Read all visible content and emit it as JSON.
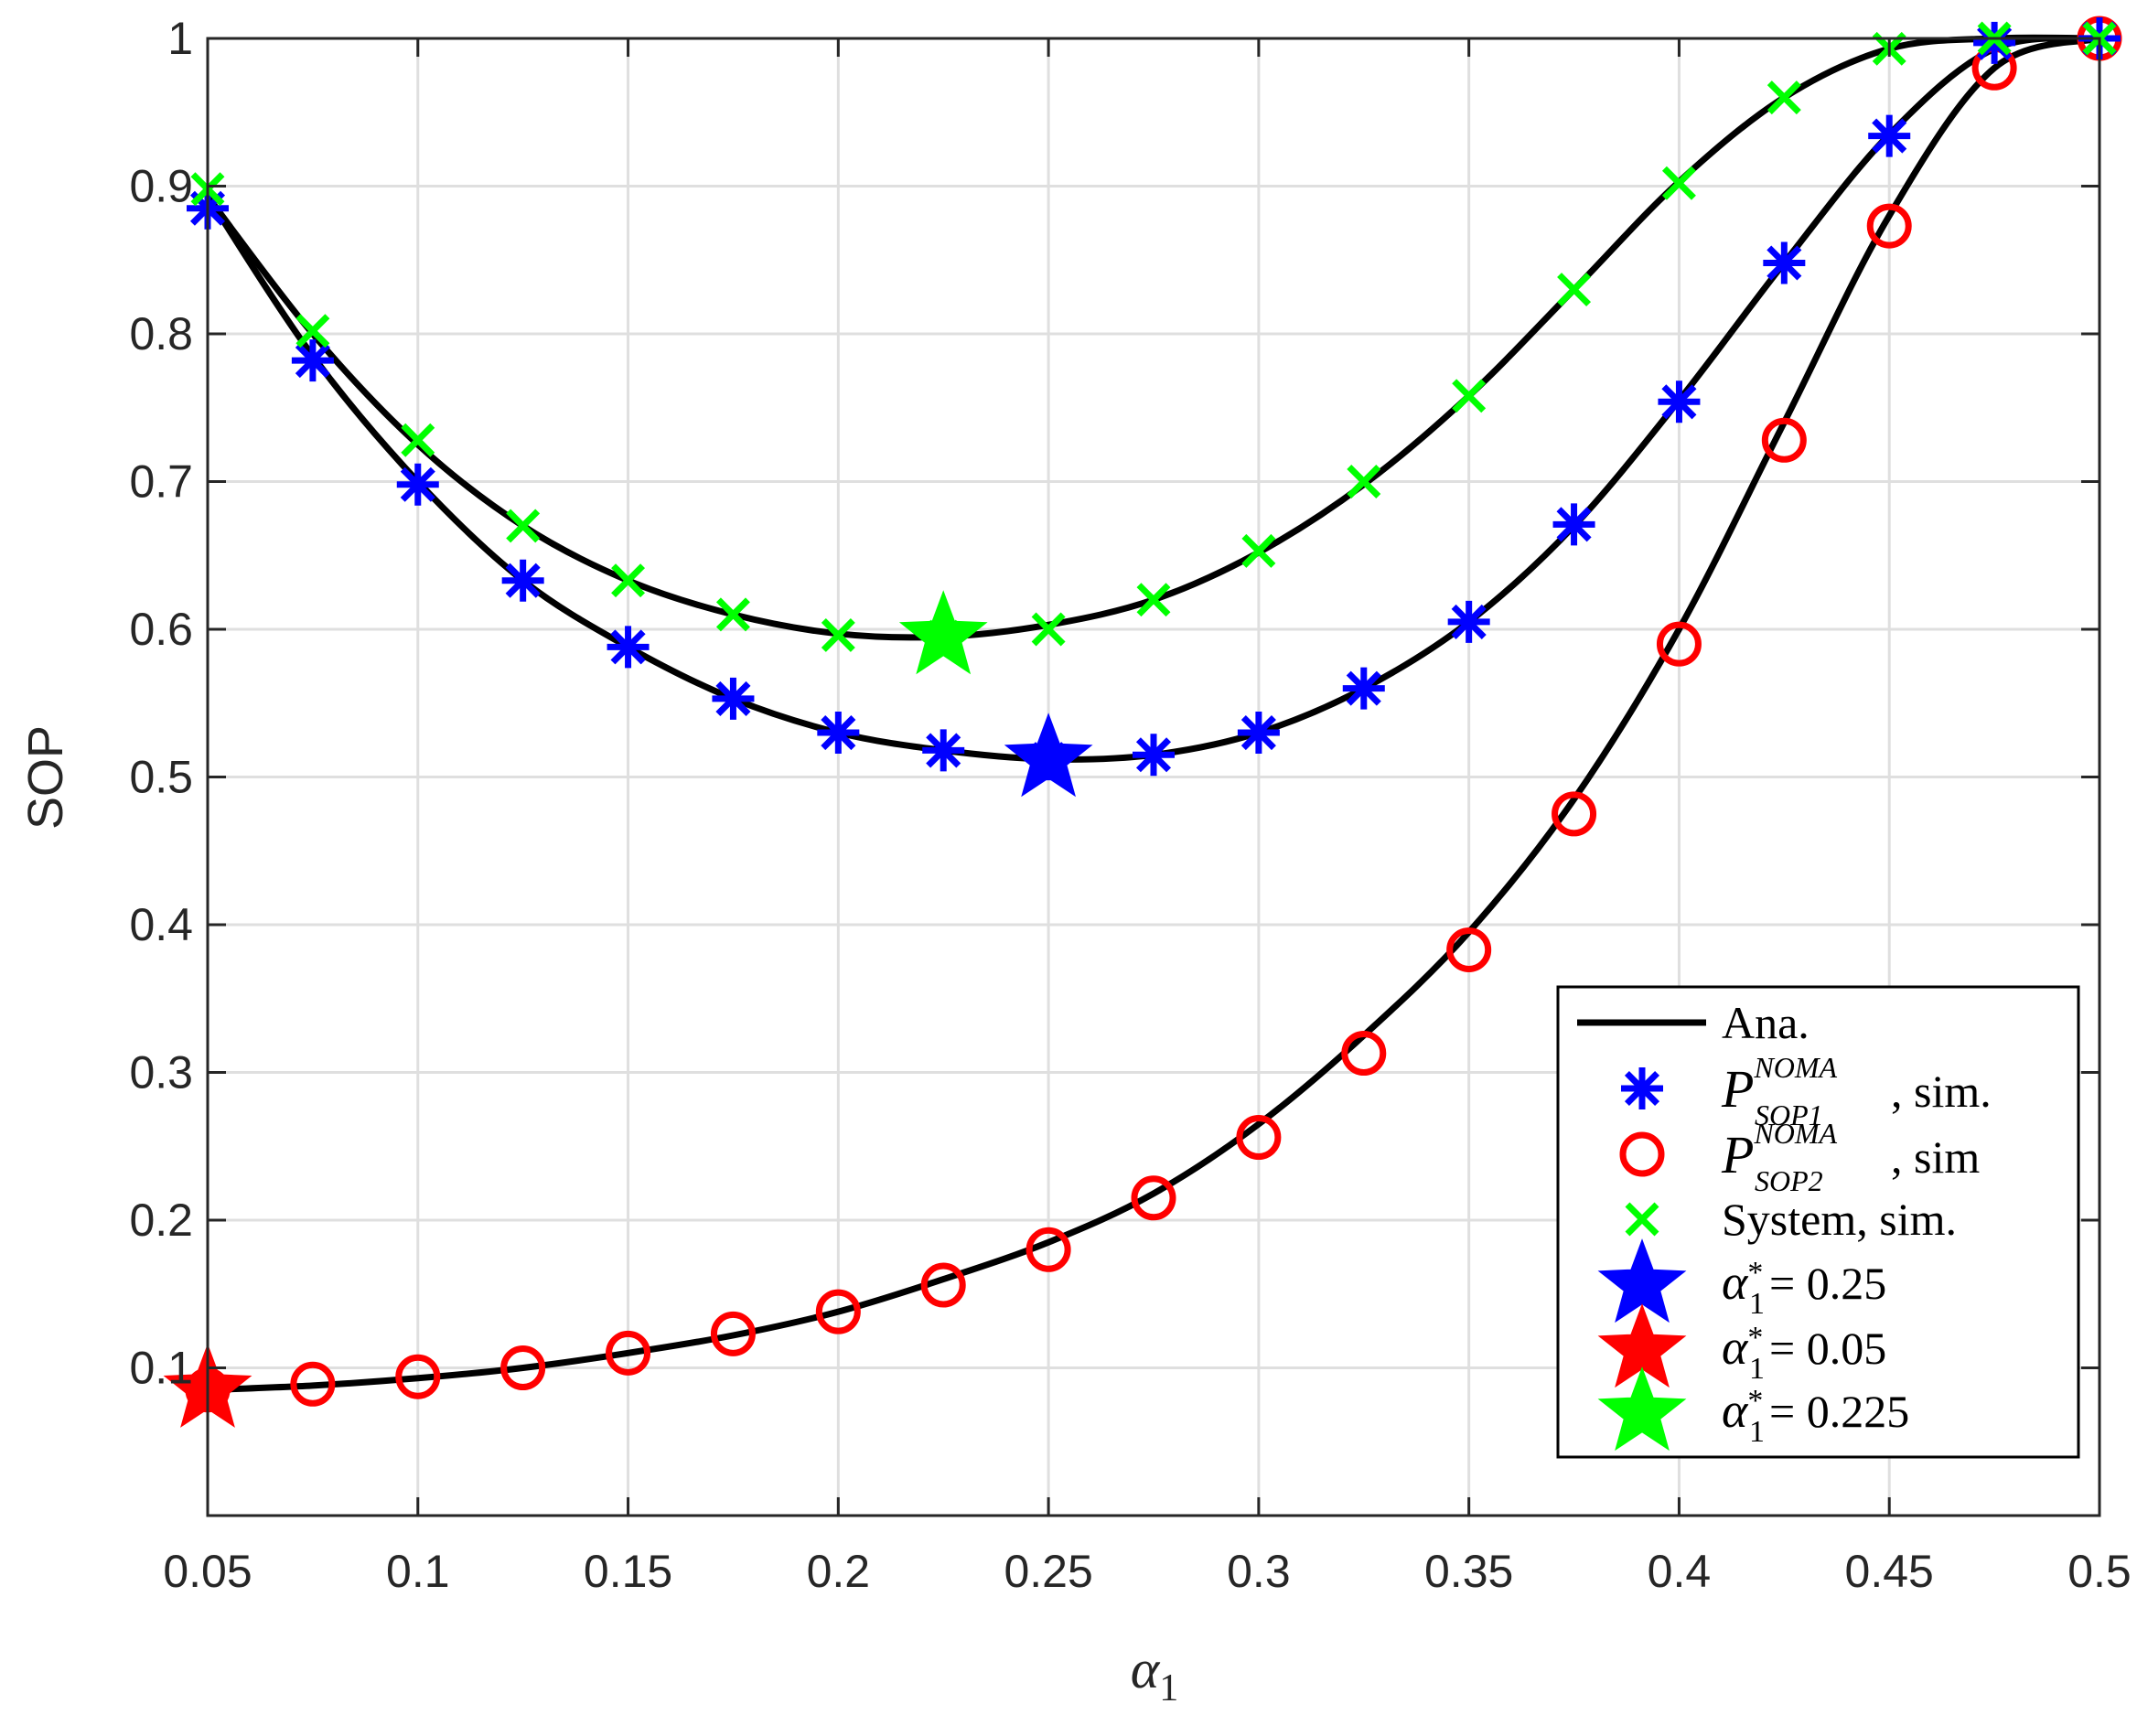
{
  "chart_data": {
    "type": "line",
    "title": "",
    "xlabel": "α",
    "xlabel_subscript": "1",
    "ylabel": "SOP",
    "xlim": [
      0.05,
      0.5
    ],
    "ylim": [
      0,
      1
    ],
    "grid": true,
    "x_ticks": [
      0.05,
      0.1,
      0.15,
      0.2,
      0.25,
      0.3,
      0.35,
      0.4,
      0.45,
      0.5
    ],
    "x_tick_labels": [
      "0.05",
      "0.1",
      "0.15",
      "0.2",
      "0.25",
      "0.3",
      "0.35",
      "0.4",
      "0.45",
      "0.5"
    ],
    "y_ticks": [
      0.1,
      0.2,
      0.3,
      0.4,
      0.5,
      0.6,
      0.7,
      0.8,
      0.9,
      1.0
    ],
    "y_tick_labels": [
      "0.1",
      "0.2",
      "0.3",
      "0.4",
      "0.5",
      "0.6",
      "0.7",
      "0.8",
      "0.9",
      "1"
    ],
    "legend_position": "bottom-right",
    "x": [
      0.05,
      0.075,
      0.1,
      0.125,
      0.15,
      0.175,
      0.2,
      0.225,
      0.25,
      0.275,
      0.3,
      0.325,
      0.35,
      0.375,
      0.4,
      0.425,
      0.45,
      0.475,
      0.5
    ],
    "analytical": [
      {
        "curve": "SOP1",
        "values": [
          0.893,
          0.785,
          0.7,
          0.633,
          0.588,
          0.553,
          0.53,
          0.518,
          0.512,
          0.515,
          0.53,
          0.56,
          0.605,
          0.67,
          0.755,
          0.848,
          0.935,
          0.993,
          1.0
        ]
      },
      {
        "curve": "SOP2",
        "values": [
          0.085,
          0.088,
          0.093,
          0.1,
          0.11,
          0.122,
          0.138,
          0.16,
          0.185,
          0.218,
          0.265,
          0.325,
          0.395,
          0.485,
          0.6,
          0.74,
          0.88,
          0.98,
          1.0
        ]
      },
      {
        "curve": "System",
        "values": [
          0.893,
          0.8,
          0.725,
          0.67,
          0.633,
          0.61,
          0.597,
          0.595,
          0.603,
          0.62,
          0.652,
          0.698,
          0.758,
          0.83,
          0.903,
          0.96,
          0.993,
          1.0,
          1.0
        ]
      }
    ],
    "series": [
      {
        "name": "Ana.",
        "marker": "line",
        "color": "#000000"
      },
      {
        "name_base": "P",
        "name_sup": "NOMA",
        "name_sub": "SOP1",
        "name_suffix": ", sim.",
        "marker": "asterisk",
        "color": "#0000ff",
        "values": [
          0.885,
          0.782,
          0.698,
          0.633,
          0.588,
          0.553,
          0.53,
          0.518,
          0.512,
          0.515,
          0.53,
          0.56,
          0.605,
          0.671,
          0.754,
          0.848,
          0.934,
          0.997,
          1.0
        ]
      },
      {
        "name_base": "P",
        "name_sup": "NOMA",
        "name_sub": "SOP2",
        "name_suffix": ", sim",
        "marker": "circle",
        "color": "#ff0000",
        "values": [
          0.085,
          0.089,
          0.094,
          0.1,
          0.11,
          0.123,
          0.138,
          0.156,
          0.18,
          0.215,
          0.256,
          0.313,
          0.383,
          0.475,
          0.59,
          0.728,
          0.873,
          0.98,
          1.0
        ]
      },
      {
        "name": "System, sim.",
        "marker": "x",
        "color": "#00ff00",
        "values": [
          0.898,
          0.802,
          0.728,
          0.67,
          0.633,
          0.61,
          0.596,
          0.595,
          0.6,
          0.62,
          0.653,
          0.7,
          0.758,
          0.83,
          0.902,
          0.96,
          0.993,
          1.0,
          1.0
        ]
      }
    ],
    "optima": [
      {
        "label_base": "α",
        "label_sub": "1",
        "label_sup": "*",
        "label_value": "= 0.25",
        "x": 0.25,
        "y": 0.512,
        "color": "#0000ff"
      },
      {
        "label_base": "α",
        "label_sub": "1",
        "label_sup": "*",
        "label_value": "= 0.05",
        "x": 0.05,
        "y": 0.085,
        "color": "#ff0000"
      },
      {
        "label_base": "α",
        "label_sub": "1",
        "label_sup": "*",
        "label_value": "= 0.225",
        "x": 0.225,
        "y": 0.595,
        "color": "#00ff00"
      }
    ]
  }
}
